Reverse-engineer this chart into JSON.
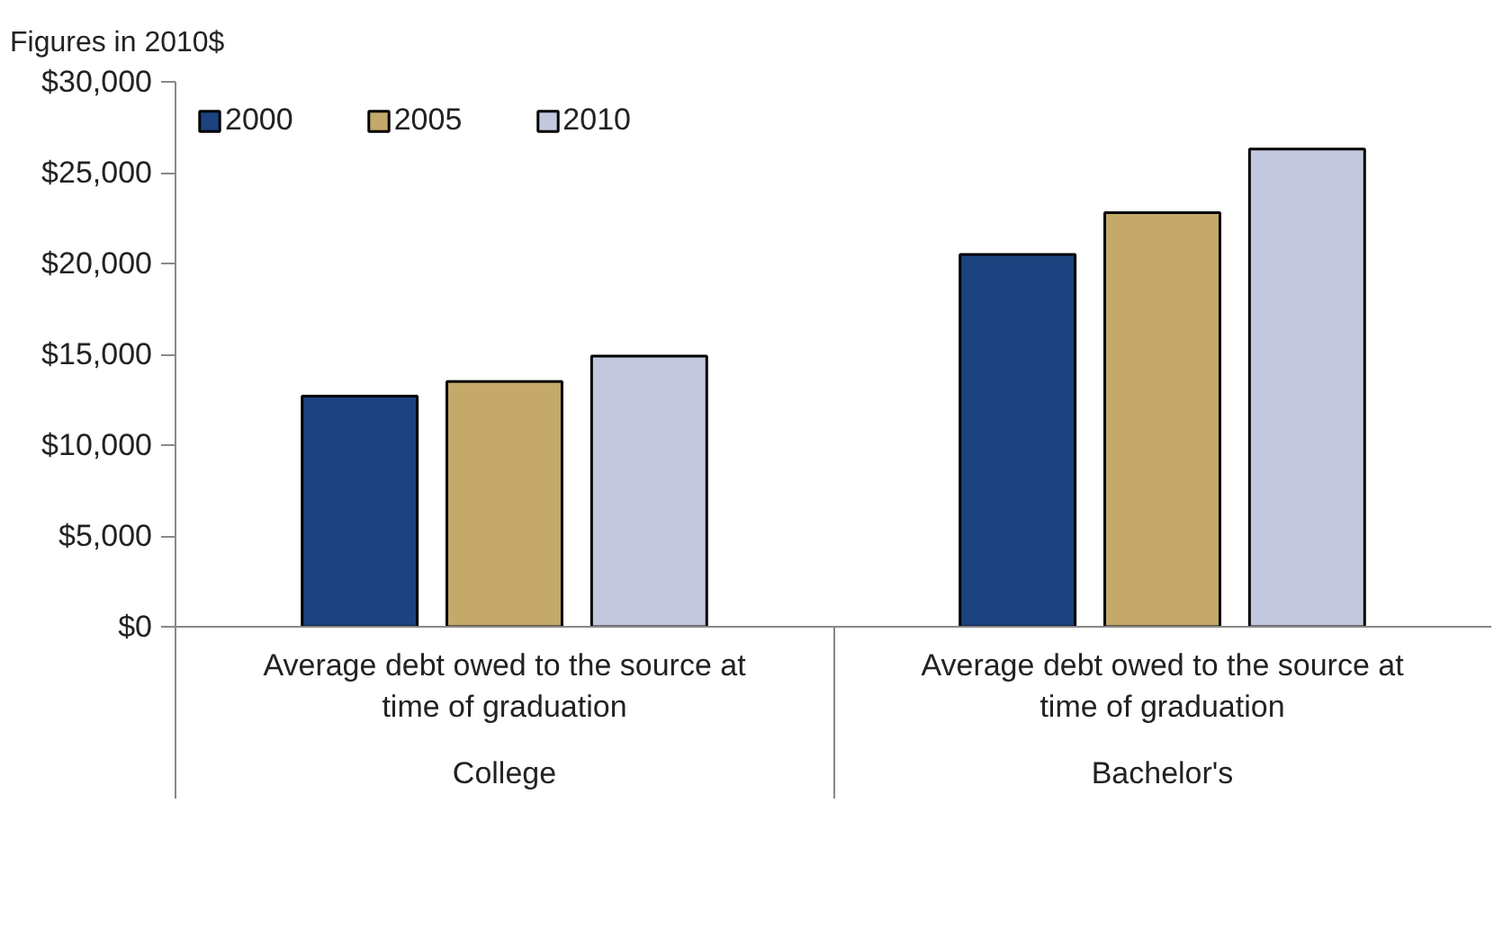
{
  "chart_data": {
    "type": "bar",
    "ylabel": "Figures in 2010$",
    "categories": [
      "College",
      "Bachelor's"
    ],
    "annotations": [
      "Average debt owed to the source at time of graduation",
      "Average debt owed to the source at time of graduation"
    ],
    "series": [
      {
        "name": "2000",
        "color": "#1c4380",
        "values": [
          12700,
          20500
        ]
      },
      {
        "name": "2005",
        "color": "#c4a96b",
        "values": [
          13500,
          22800
        ]
      },
      {
        "name": "2010",
        "color": "#c3c8de",
        "values": [
          14900,
          26300
        ]
      }
    ],
    "ylim": [
      0,
      30000
    ],
    "yticks": [
      {
        "value": 0,
        "label": "$0"
      },
      {
        "value": 5000,
        "label": "$5,000"
      },
      {
        "value": 10000,
        "label": "$10,000"
      },
      {
        "value": 15000,
        "label": "$15,000"
      },
      {
        "value": 20000,
        "label": "$20,000"
      },
      {
        "value": 25000,
        "label": "$25,000"
      },
      {
        "value": 30000,
        "label": "$30,000"
      }
    ],
    "grid": false,
    "legend": "top left"
  }
}
